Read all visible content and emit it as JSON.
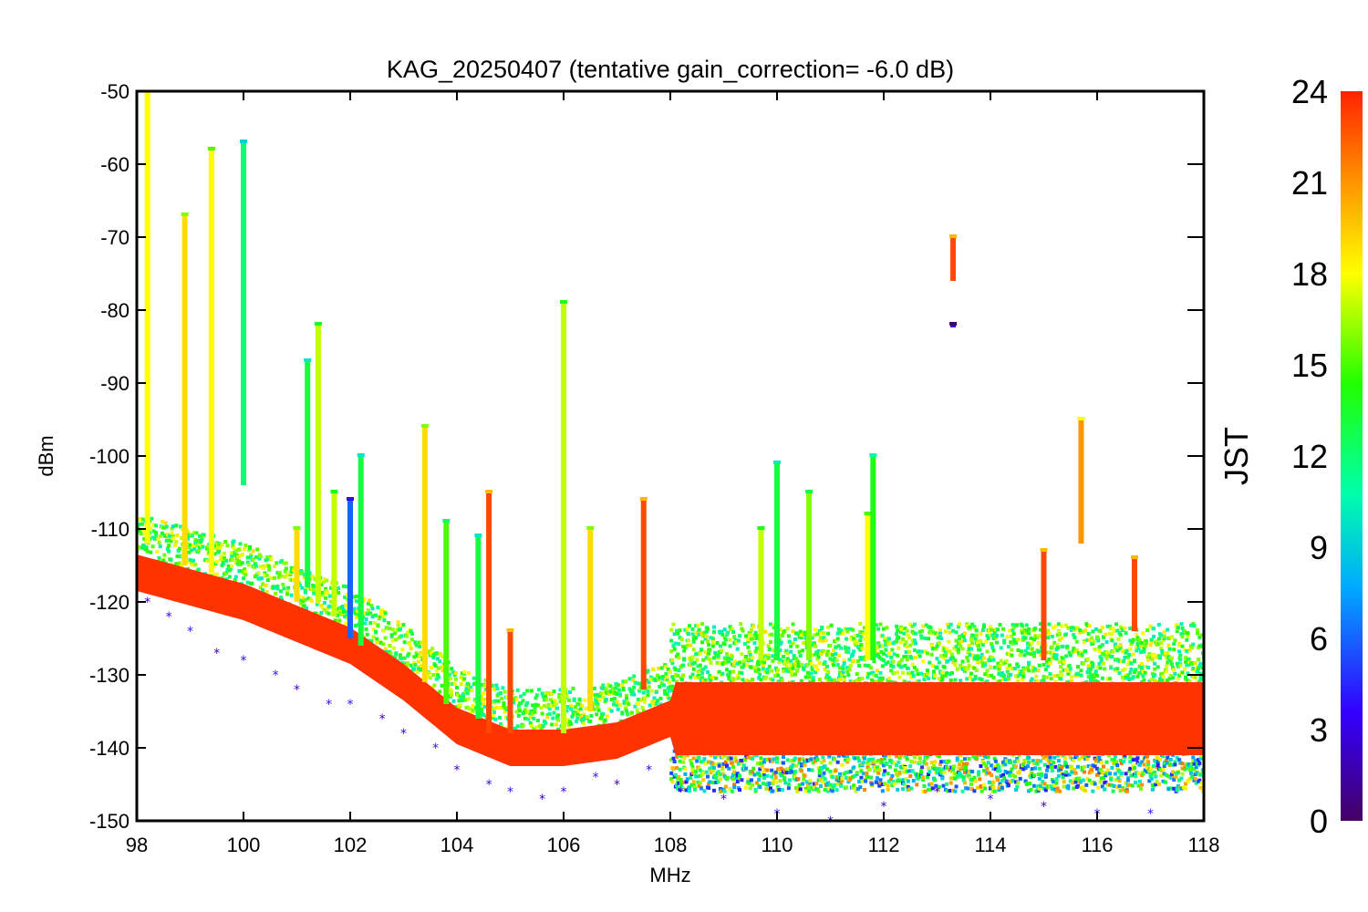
{
  "chart_data": {
    "type": "scatter",
    "title": "KAG_20250407 (tentative gain_correction= -6.0 dB)",
    "xlabel": "MHz",
    "ylabel": "dBm",
    "xlim": [
      98,
      118
    ],
    "ylim": [
      -150,
      -50
    ],
    "xticks": [
      98,
      100,
      102,
      104,
      106,
      108,
      110,
      112,
      114,
      116,
      118
    ],
    "yticks": [
      -50,
      -60,
      -70,
      -80,
      -90,
      -100,
      -110,
      -120,
      -130,
      -140,
      -150
    ],
    "colorbar": {
      "label": "JST",
      "range": [
        0,
        24
      ],
      "ticks": [
        0,
        3,
        6,
        9,
        12,
        15,
        18,
        21,
        24
      ],
      "colormap": "rainbow (purple-blue-cyan-green-yellow-orange-red)"
    },
    "grid": false,
    "noise_floor": {
      "x": [
        98,
        100,
        102,
        103,
        104,
        105,
        106,
        107,
        108,
        110,
        112,
        114,
        116,
        118
      ],
      "y": [
        -116,
        -120,
        -126,
        -131,
        -137,
        -140,
        -140,
        -139,
        -136,
        -136,
        -136,
        -136,
        -136,
        -136
      ]
    },
    "signal_lines": [
      {
        "x": 98.2,
        "top": -50,
        "bottom": -112,
        "jst": 18
      },
      {
        "x": 98.9,
        "top": -67,
        "bottom": -115,
        "jst": 19
      },
      {
        "x": 99.4,
        "top": -58,
        "bottom": -116,
        "jst": 18
      },
      {
        "x": 100.0,
        "top": -57,
        "bottom": -104,
        "jst": 12
      },
      {
        "x": 101.0,
        "top": -110,
        "bottom": -120,
        "jst": 19
      },
      {
        "x": 101.2,
        "top": -87,
        "bottom": -118,
        "jst": 13
      },
      {
        "x": 101.4,
        "top": -82,
        "bottom": -120,
        "jst": 17
      },
      {
        "x": 101.7,
        "top": -105,
        "bottom": -122,
        "jst": 17
      },
      {
        "x": 102.0,
        "top": -106,
        "bottom": -125,
        "jst": 6
      },
      {
        "x": 102.2,
        "top": -100,
        "bottom": -126,
        "jst": 13
      },
      {
        "x": 103.4,
        "top": -96,
        "bottom": -131,
        "jst": 19
      },
      {
        "x": 103.8,
        "top": -109,
        "bottom": -134,
        "jst": 15
      },
      {
        "x": 104.4,
        "top": -111,
        "bottom": -136,
        "jst": 13
      },
      {
        "x": 104.6,
        "top": -105,
        "bottom": -138,
        "jst": 23
      },
      {
        "x": 105.0,
        "top": -124,
        "bottom": -138,
        "jst": 23
      },
      {
        "x": 106.0,
        "top": -79,
        "bottom": -138,
        "jst": 17
      },
      {
        "x": 106.5,
        "top": -110,
        "bottom": -135,
        "jst": 19
      },
      {
        "x": 107.5,
        "top": -106,
        "bottom": -132,
        "jst": 23
      },
      {
        "x": 109.7,
        "top": -110,
        "bottom": -128,
        "jst": 17
      },
      {
        "x": 110.0,
        "top": -101,
        "bottom": -128,
        "jst": 13
      },
      {
        "x": 110.6,
        "top": -105,
        "bottom": -128,
        "jst": 16
      },
      {
        "x": 111.7,
        "top": -108,
        "bottom": -128,
        "jst": 18
      },
      {
        "x": 111.8,
        "top": -100,
        "bottom": -128,
        "jst": 14
      },
      {
        "x": 113.3,
        "top": -70,
        "bottom": -76,
        "jst": 23
      },
      {
        "x": 113.3,
        "top": -82,
        "bottom": -82,
        "jst": 3
      },
      {
        "x": 115.0,
        "top": -113,
        "bottom": -128,
        "jst": 23
      },
      {
        "x": 115.7,
        "top": -95,
        "bottom": -112,
        "jst": 21
      },
      {
        "x": 116.7,
        "top": -114,
        "bottom": -124,
        "jst": 23
      }
    ],
    "night_outliers": {
      "x": [
        98.2,
        98.6,
        99.0,
        99.5,
        100.0,
        100.6,
        101.0,
        101.6,
        102.0,
        102.6,
        103.0,
        103.6,
        104.0,
        104.6,
        105.0,
        105.6,
        106.0,
        106.6,
        107.0,
        107.6,
        108.2,
        109.0,
        110.0,
        111.0,
        112.0,
        113.0,
        114.0,
        115.0,
        116.0,
        117.0
      ],
      "y": [
        -120,
        -122,
        -124,
        -127,
        -128,
        -130,
        -132,
        -134,
        -134,
        -136,
        -138,
        -140,
        -143,
        -145,
        -146,
        -147,
        -146,
        -144,
        -145,
        -143,
        -146,
        -147,
        -149,
        -150,
        -148,
        -146,
        -147,
        -148,
        -149,
        -149
      ]
    }
  }
}
